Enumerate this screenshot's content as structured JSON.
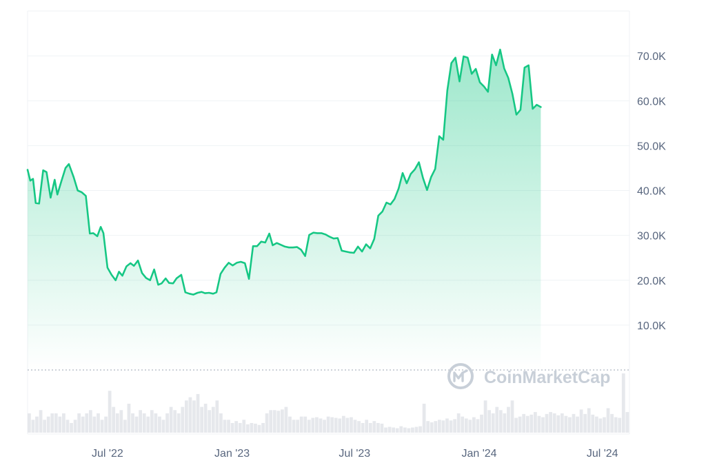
{
  "watermark": {
    "text": "CoinMarketCap",
    "logo_icon": "coinmarketcap-logo-icon"
  },
  "colors": {
    "line": "#16c784",
    "fill_top": "#16c784",
    "volume": "#e6e8ec",
    "grid": "#eff2f5",
    "axis_text": "#58667e",
    "watermark": "#c8cfd8"
  },
  "chart_data": {
    "type": "area",
    "title": "",
    "xlabel": "",
    "ylabel": "",
    "x_tick_labels": [
      "Jul '22",
      "Jan '23",
      "Jul '23",
      "Jan '24",
      "Jul '24"
    ],
    "x_tick_dates": [
      "2022-07-01",
      "2023-01-01",
      "2023-07-01",
      "2024-01-01",
      "2024-07-01"
    ],
    "y_tick_labels": [
      "10.0K",
      "20.0K",
      "30.0K",
      "40.0K",
      "50.0K",
      "60.0K",
      "70.0K"
    ],
    "y_ticks": [
      10000,
      20000,
      30000,
      40000,
      50000,
      60000,
      70000
    ],
    "ylim": [
      0,
      80000
    ],
    "xlim": [
      "2022-03-05",
      "2024-08-10"
    ],
    "grid": true,
    "legend": "none",
    "series": [
      {
        "values": [
          [
            "2022-03-05",
            44600
          ],
          [
            "2022-03-09",
            42200
          ],
          [
            "2022-03-13",
            42600
          ],
          [
            "2022-03-17",
            37200
          ],
          [
            "2022-03-22",
            37100
          ],
          [
            "2022-03-28",
            44500
          ],
          [
            "2022-04-02",
            44100
          ],
          [
            "2022-04-08",
            38400
          ],
          [
            "2022-04-14",
            42400
          ],
          [
            "2022-04-18",
            39100
          ],
          [
            "2022-04-24",
            42100
          ],
          [
            "2022-04-30",
            45000
          ],
          [
            "2022-05-05",
            45900
          ],
          [
            "2022-05-12",
            43000
          ],
          [
            "2022-05-18",
            40000
          ],
          [
            "2022-05-24",
            39600
          ],
          [
            "2022-05-30",
            38800
          ],
          [
            "2022-06-05",
            30400
          ],
          [
            "2022-06-10",
            30500
          ],
          [
            "2022-06-16",
            29800
          ],
          [
            "2022-06-21",
            31900
          ],
          [
            "2022-06-25",
            30500
          ],
          [
            "2022-07-01",
            22800
          ],
          [
            "2022-07-07",
            21200
          ],
          [
            "2022-07-13",
            20000
          ],
          [
            "2022-07-18",
            21900
          ],
          [
            "2022-07-23",
            21000
          ],
          [
            "2022-07-29",
            23100
          ],
          [
            "2022-08-04",
            23800
          ],
          [
            "2022-08-09",
            23200
          ],
          [
            "2022-08-15",
            24400
          ],
          [
            "2022-08-21",
            21600
          ],
          [
            "2022-08-27",
            20500
          ],
          [
            "2022-09-02",
            20000
          ],
          [
            "2022-09-08",
            22400
          ],
          [
            "2022-09-14",
            19000
          ],
          [
            "2022-09-19",
            19300
          ],
          [
            "2022-09-25",
            20400
          ],
          [
            "2022-09-30",
            19400
          ],
          [
            "2022-10-06",
            19300
          ],
          [
            "2022-10-11",
            20400
          ],
          [
            "2022-10-18",
            21200
          ],
          [
            "2022-10-24",
            17300
          ],
          [
            "2022-10-30",
            17000
          ],
          [
            "2022-11-05",
            16800
          ],
          [
            "2022-11-11",
            17200
          ],
          [
            "2022-11-17",
            17400
          ],
          [
            "2022-11-22",
            17100
          ],
          [
            "2022-11-28",
            17200
          ],
          [
            "2022-12-04",
            17000
          ],
          [
            "2022-12-09",
            17300
          ],
          [
            "2022-12-15",
            21400
          ],
          [
            "2022-12-21",
            22800
          ],
          [
            "2022-12-27",
            23900
          ],
          [
            "2023-01-02",
            23300
          ],
          [
            "2023-01-08",
            23900
          ],
          [
            "2023-01-14",
            24100
          ],
          [
            "2023-01-20",
            23800
          ],
          [
            "2023-01-26",
            20300
          ],
          [
            "2023-02-01",
            27600
          ],
          [
            "2023-02-07",
            27600
          ],
          [
            "2023-02-13",
            28600
          ],
          [
            "2023-02-19",
            28400
          ],
          [
            "2023-02-25",
            30400
          ],
          [
            "2023-03-02",
            27800
          ],
          [
            "2023-03-08",
            28300
          ],
          [
            "2023-03-14",
            27900
          ],
          [
            "2023-03-20",
            27500
          ],
          [
            "2023-03-26",
            27300
          ],
          [
            "2023-04-01",
            27300
          ],
          [
            "2023-04-07",
            27400
          ],
          [
            "2023-04-13",
            26800
          ],
          [
            "2023-04-19",
            25400
          ],
          [
            "2023-04-25",
            30100
          ],
          [
            "2023-05-01",
            30600
          ],
          [
            "2023-05-07",
            30500
          ],
          [
            "2023-05-13",
            30500
          ],
          [
            "2023-05-19",
            30200
          ],
          [
            "2023-05-25",
            29700
          ],
          [
            "2023-05-31",
            29300
          ],
          [
            "2023-06-06",
            29400
          ],
          [
            "2023-06-12",
            26600
          ],
          [
            "2023-06-18",
            26400
          ],
          [
            "2023-06-24",
            26200
          ],
          [
            "2023-06-30",
            26100
          ],
          [
            "2023-07-06",
            27500
          ],
          [
            "2023-07-12",
            26400
          ],
          [
            "2023-07-18",
            28000
          ],
          [
            "2023-07-24",
            27100
          ],
          [
            "2023-07-30",
            29200
          ],
          [
            "2023-08-05",
            34400
          ],
          [
            "2023-08-11",
            35300
          ],
          [
            "2023-08-17",
            37300
          ],
          [
            "2023-08-23",
            36900
          ],
          [
            "2023-08-29",
            38100
          ],
          [
            "2023-09-04",
            40400
          ],
          [
            "2023-09-10",
            43900
          ],
          [
            "2023-09-16",
            41600
          ],
          [
            "2023-09-22",
            43700
          ],
          [
            "2023-09-28",
            44700
          ],
          [
            "2023-10-04",
            46300
          ],
          [
            "2023-10-10",
            42800
          ],
          [
            "2023-10-16",
            40100
          ],
          [
            "2023-10-22",
            43000
          ],
          [
            "2023-10-28",
            44800
          ],
          [
            "2023-11-03",
            52100
          ],
          [
            "2023-11-09",
            51300
          ],
          [
            "2023-11-15",
            62300
          ],
          [
            "2023-11-21",
            68400
          ],
          [
            "2023-11-27",
            69600
          ],
          [
            "2023-12-03",
            64300
          ],
          [
            "2023-12-09",
            69900
          ],
          [
            "2023-12-15",
            69600
          ],
          [
            "2023-12-21",
            66000
          ],
          [
            "2023-12-27",
            67100
          ],
          [
            "2024-01-02",
            64100
          ],
          [
            "2024-01-08",
            63200
          ],
          [
            "2024-01-14",
            62000
          ],
          [
            "2024-01-20",
            70300
          ],
          [
            "2024-01-26",
            67900
          ],
          [
            "2024-02-01",
            71400
          ],
          [
            "2024-02-07",
            67200
          ],
          [
            "2024-02-13",
            65100
          ],
          [
            "2024-02-19",
            61600
          ],
          [
            "2024-02-25",
            56900
          ],
          [
            "2024-03-02",
            58000
          ],
          [
            "2024-03-08",
            67400
          ],
          [
            "2024-03-14",
            67900
          ],
          [
            "2024-03-20",
            58200
          ],
          [
            "2024-03-26",
            59100
          ],
          [
            "2024-04-01",
            58600
          ]
        ]
      }
    ],
    "volume": [
      3,
      2,
      2.5,
      3.5,
      2,
      2.5,
      3,
      3,
      2.5,
      3,
      2,
      1.5,
      2,
      3,
      2.5,
      3,
      3.5,
      2.5,
      3,
      2,
      2.5,
      6.5,
      4,
      3,
      3.5,
      2,
      4.5,
      3,
      2.5,
      3.5,
      3,
      2.5,
      3.5,
      3,
      2.5,
      2,
      3,
      4,
      3.5,
      3,
      4,
      5,
      5.5,
      5,
      6,
      4,
      4.5,
      3.5,
      4,
      5,
      3,
      2,
      2,
      1.5,
      1.8,
      1.5,
      2,
      1.3,
      1.5,
      1.4,
      1.2,
      1.5,
      3,
      3.5,
      3.5,
      3.4,
      3.6,
      4,
      2.5,
      2,
      2,
      2.5,
      2.5,
      2,
      2.3,
      2.4,
      2.2,
      2,
      2.5,
      2.4,
      2.3,
      2.2,
      2.6,
      2.3,
      2.4,
      2,
      1.8,
      1.5,
      2,
      1.5,
      1.8,
      1.5,
      1.4,
      0.8,
      0.9,
      0.8,
      0.7,
      1,
      0.8,
      0.7,
      0.8,
      0.9,
      1,
      4.5,
      1.8,
      1.6,
      1.8,
      2,
      1.9,
      2.2,
      1.9,
      2.1,
      3,
      2.5,
      2.2,
      2,
      2.4,
      2.1,
      2.8,
      5,
      3.5,
      3,
      4,
      3.5,
      3,
      4,
      5,
      2.3,
      2.5,
      2.9,
      2.6,
      2.8,
      3.2,
      2.6,
      2.4,
      2.9,
      3.2,
      3,
      2.7,
      3,
      2.6,
      2.4,
      2.9,
      2.5,
      3.6,
      2.9,
      3.8,
      2.8,
      2.5,
      2.2,
      2.4,
      3.8,
      2.9,
      2.4,
      2.3,
      9.2,
      3.2
    ]
  }
}
